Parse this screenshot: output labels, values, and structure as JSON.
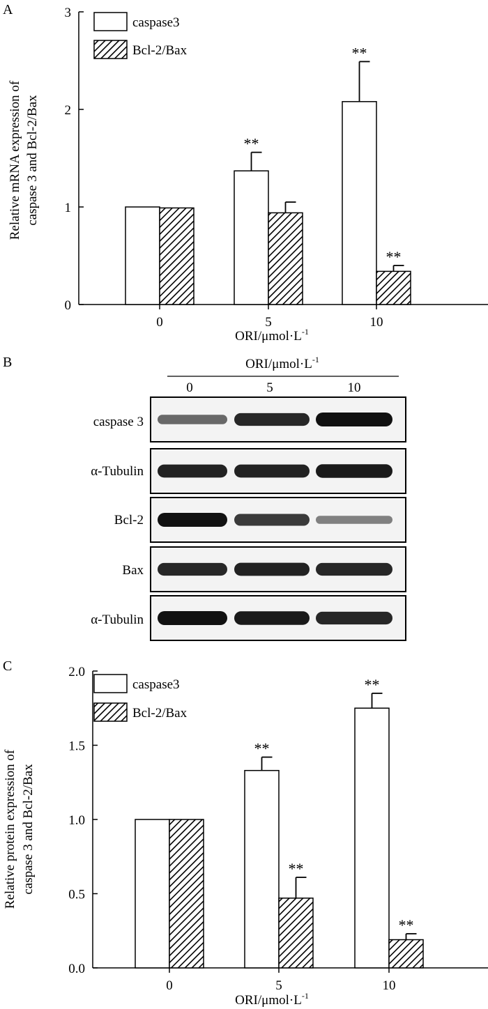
{
  "figure": {
    "panel_a_label": "A",
    "panel_b_label": "B",
    "panel_c_label": "C"
  },
  "chart_data": [
    {
      "panel": "A",
      "type": "bar",
      "categories": [
        "0",
        "5",
        "10"
      ],
      "xlabel": "ORI/μmol·L",
      "xlabel_sup": "-1",
      "ylabel_line1": "Relative mRNA expression of",
      "ylabel_line2": "caspase 3 and Bcl-2/Bax",
      "ylim": [
        0,
        3
      ],
      "yticks": [
        0,
        1,
        2,
        3
      ],
      "ytick_labels": [
        "0",
        "1",
        "2",
        "3"
      ],
      "legend": "top-left",
      "series": [
        {
          "name": "caspase3",
          "fill": "open",
          "values": [
            1.0,
            1.37,
            2.08
          ],
          "errors": [
            0,
            0.19,
            0.41
          ],
          "sig": [
            "",
            "**",
            "**"
          ]
        },
        {
          "name": "Bcl-2/Bax",
          "fill": "hatched",
          "values": [
            0.99,
            0.94,
            0.34
          ],
          "errors": [
            0,
            0.11,
            0.06
          ],
          "sig": [
            "",
            "",
            "**"
          ]
        }
      ]
    },
    {
      "panel": "C",
      "type": "bar",
      "categories": [
        "0",
        "5",
        "10"
      ],
      "xlabel": "ORI/μmol·L",
      "xlabel_sup": "-1",
      "ylabel_line1": "Relative protein expression of",
      "ylabel_line2": "caspase 3 and Bcl-2/Bax",
      "ylim": [
        0,
        2.0
      ],
      "yticks": [
        0,
        0.5,
        1.0,
        1.5,
        2.0
      ],
      "ytick_labels": [
        "0.0",
        "0.5",
        "1.0",
        "1.5",
        "2.0"
      ],
      "legend": "top-left",
      "series": [
        {
          "name": "caspase3",
          "fill": "open",
          "values": [
            1.0,
            1.33,
            1.75
          ],
          "errors": [
            0,
            0.09,
            0.1
          ],
          "sig": [
            "",
            "**",
            "**"
          ]
        },
        {
          "name": "Bcl-2/Bax",
          "fill": "hatched",
          "values": [
            1.0,
            0.47,
            0.19
          ],
          "errors": [
            0,
            0.14,
            0.04
          ],
          "sig": [
            "",
            "**",
            "**"
          ]
        }
      ]
    }
  ],
  "blot": {
    "header": "ORI/μmol·L",
    "header_sup": "-1",
    "lanes": [
      "0",
      "5",
      "10"
    ],
    "rows": [
      {
        "label": "caspase 3",
        "intensity": [
          0.45,
          0.85,
          1.0
        ]
      },
      {
        "label": "α-Tubulin",
        "intensity": [
          0.9,
          0.9,
          0.95
        ]
      },
      {
        "label": "Bcl-2",
        "intensity": [
          1.0,
          0.75,
          0.3
        ]
      },
      {
        "label": "Bax",
        "intensity": [
          0.85,
          0.9,
          0.85
        ]
      },
      {
        "label": "α-Tubulin",
        "intensity": [
          1.0,
          0.95,
          0.85
        ]
      }
    ]
  }
}
